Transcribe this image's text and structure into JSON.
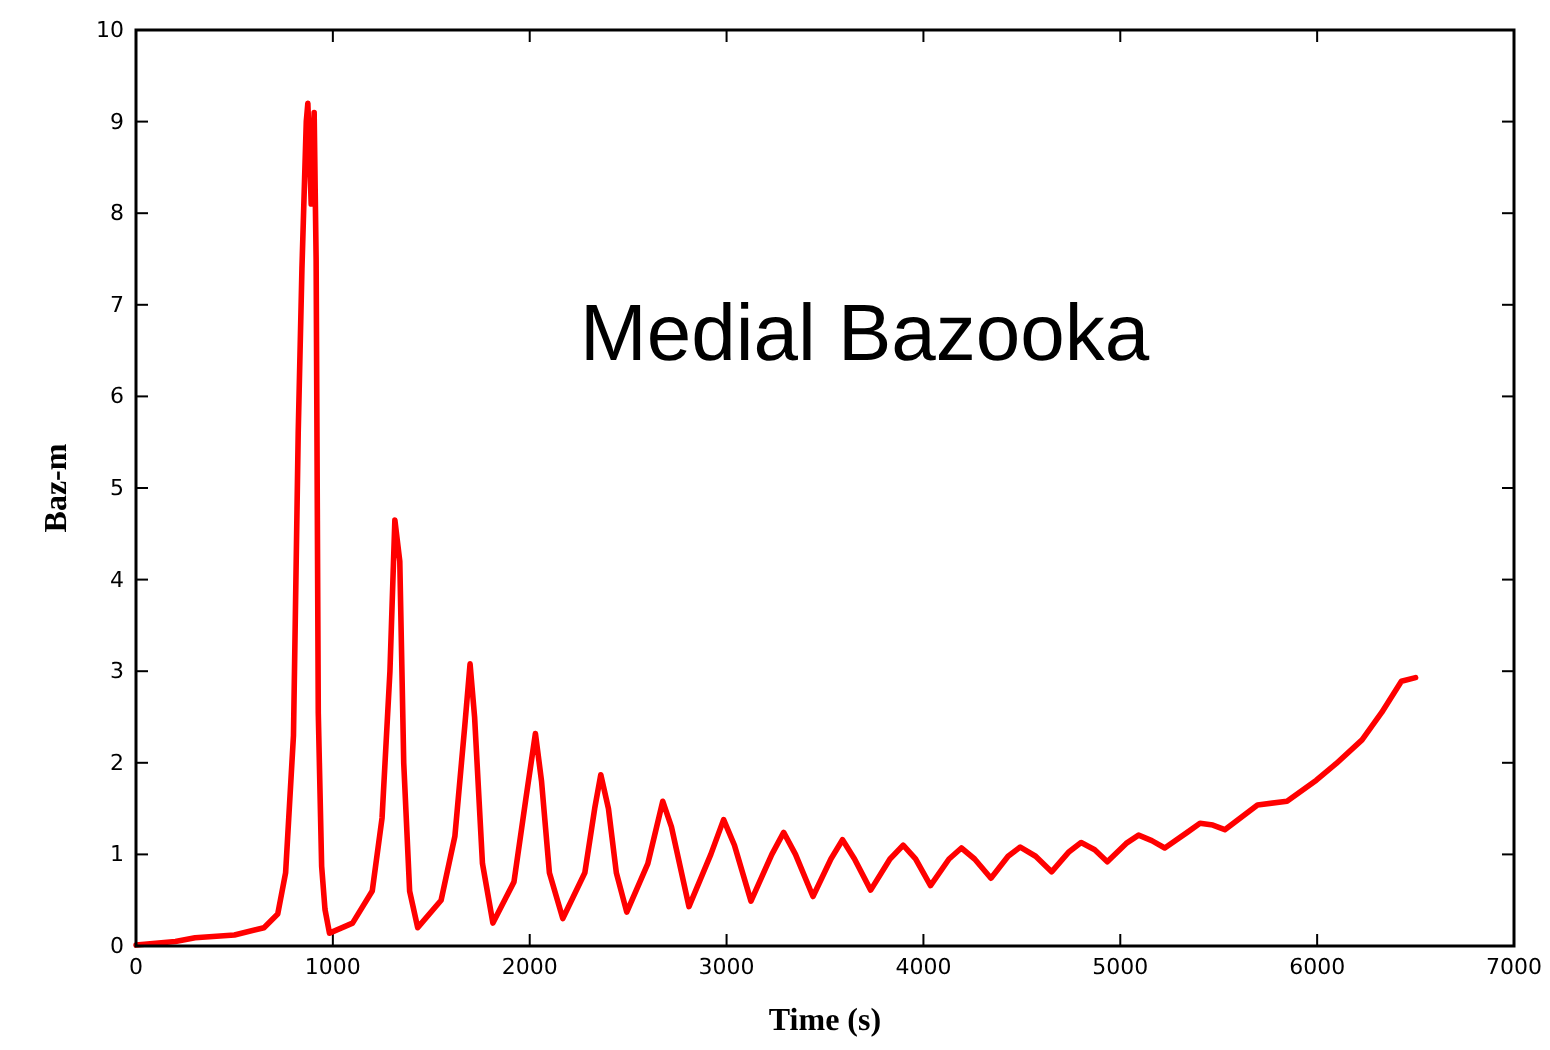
{
  "chart_data": {
    "type": "line",
    "xlabel": "Time (s)",
    "ylabel": "Baz-m",
    "annotations": [
      "Medial Bazooka"
    ],
    "xlim": [
      0,
      7000
    ],
    "xticks": [
      0,
      1000,
      2000,
      3000,
      4000,
      5000,
      6000,
      7000
    ],
    "ylim": [
      0,
      10
    ],
    "yticks": [
      0,
      1,
      2,
      3,
      4,
      5,
      6,
      7,
      8,
      9,
      10
    ],
    "grid": false,
    "marker": "none",
    "line_style": "solid",
    "series": [
      {
        "color": "#ff0000",
        "x": [
          0,
          100,
          200,
          300,
          500,
          650,
          720,
          760,
          800,
          824,
          843,
          865,
          873,
          890,
          905,
          915,
          926,
          943,
          960,
          983,
          1100,
          1200,
          1250,
          1290,
          1315,
          1340,
          1360,
          1390,
          1431,
          1550,
          1620,
          1670,
          1697,
          1720,
          1760,
          1813,
          1920,
          1980,
          2029,
          2060,
          2100,
          2168,
          2280,
          2330,
          2361,
          2400,
          2440,
          2493,
          2600,
          2676,
          2720,
          2809,
          2920,
          2985,
          3040,
          3124,
          3230,
          3290,
          3350,
          3439,
          3530,
          3589,
          3650,
          3732,
          3830,
          3897,
          3960,
          4036,
          4130,
          4193,
          4260,
          4343,
          4430,
          4492,
          4570,
          4651,
          4740,
          4801,
          4870,
          4934,
          5030,
          5093,
          5160,
          5226,
          5340,
          5405,
          5470,
          5531,
          5697,
          5847,
          5996,
          6096,
          6228,
          6328,
          6428,
          6500
        ],
        "values": [
          0.01,
          0.03,
          0.05,
          0.09,
          0.12,
          0.2,
          0.35,
          0.8,
          2.3,
          5.6,
          7.4,
          9.0,
          9.2,
          8.1,
          9.1,
          7.5,
          2.54,
          0.87,
          0.4,
          0.14,
          0.25,
          0.6,
          1.4,
          3.0,
          4.65,
          4.2,
          2.0,
          0.6,
          0.2,
          0.5,
          1.2,
          2.4,
          3.08,
          2.5,
          0.9,
          0.25,
          0.7,
          1.6,
          2.32,
          1.8,
          0.8,
          0.3,
          0.8,
          1.5,
          1.87,
          1.5,
          0.8,
          0.37,
          0.9,
          1.58,
          1.3,
          0.43,
          1.0,
          1.38,
          1.1,
          0.49,
          1.0,
          1.24,
          1.0,
          0.54,
          0.95,
          1.16,
          0.95,
          0.61,
          0.95,
          1.1,
          0.95,
          0.66,
          0.95,
          1.07,
          0.95,
          0.74,
          0.98,
          1.08,
          0.98,
          0.81,
          1.03,
          1.13,
          1.05,
          0.92,
          1.12,
          1.21,
          1.15,
          1.07,
          1.24,
          1.34,
          1.32,
          1.27,
          1.54,
          1.58,
          1.81,
          1.99,
          2.25,
          2.55,
          2.89,
          2.93
        ]
      }
    ]
  }
}
